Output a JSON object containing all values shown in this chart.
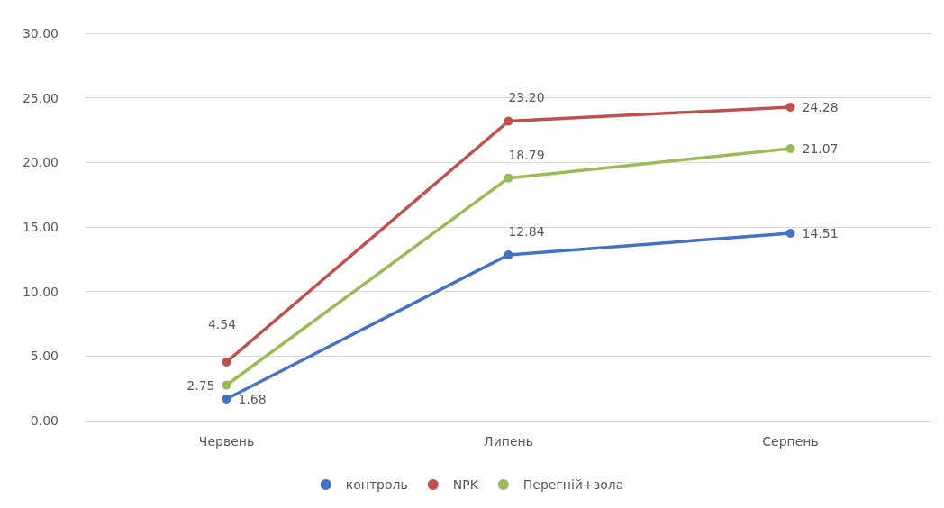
{
  "chart_data": {
    "type": "line",
    "categories": [
      "Червень",
      "Липень",
      "Серпень"
    ],
    "series": [
      {
        "name": "контроль",
        "color": "#4472c4",
        "values": [
          1.68,
          12.84,
          14.51
        ],
        "value_labels": [
          "1.68",
          "12.84",
          "14.51"
        ]
      },
      {
        "name": "NPK",
        "color": "#c0504d",
        "values": [
          4.54,
          23.2,
          24.28
        ],
        "value_labels": [
          "4.54",
          "23.20",
          "24.28"
        ]
      },
      {
        "name": "Перегній+зола",
        "color": "#9bbb59",
        "values": [
          2.75,
          18.79,
          21.07
        ],
        "value_labels": [
          "2.75",
          "18.79",
          "21.07"
        ]
      }
    ],
    "ylim": [
      0,
      30
    ],
    "yticks": [
      {
        "value": 0,
        "label": "0.00"
      },
      {
        "value": 5,
        "label": "5.00"
      },
      {
        "value": 10,
        "label": "10.00"
      },
      {
        "value": 15,
        "label": "15.00"
      },
      {
        "value": 20,
        "label": "20.00"
      },
      {
        "value": 25,
        "label": "25.00"
      },
      {
        "value": 30,
        "label": "30.00"
      }
    ],
    "grid": "y",
    "legend": "bottom",
    "marker": "circle",
    "line_style": "solid"
  }
}
